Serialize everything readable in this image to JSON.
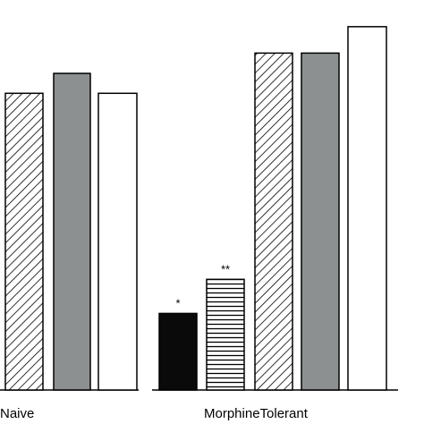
{
  "chart_data": {
    "type": "bar",
    "title": "",
    "xlabel": "",
    "ylabel": "",
    "ylim": [
      0,
      100
    ],
    "grid": false,
    "groups": [
      {
        "label": "Naive",
        "bars": [
          {
            "pattern": "diagonal-hatch",
            "value": 77.5,
            "annotation": ""
          },
          {
            "pattern": "solid-gray",
            "value": 82.7,
            "annotation": ""
          },
          {
            "pattern": "solid-white",
            "value": 77.5,
            "annotation": ""
          }
        ]
      },
      {
        "label": "MorphineTolerant",
        "bars": [
          {
            "pattern": "solid-black",
            "value": 20.0,
            "annotation": "*"
          },
          {
            "pattern": "horizontal-hatch",
            "value": 28.9,
            "annotation": "**"
          },
          {
            "pattern": "diagonal-hatch",
            "value": 88.0,
            "annotation": ""
          },
          {
            "pattern": "solid-gray",
            "value": 88.0,
            "annotation": ""
          },
          {
            "pattern": "solid-white",
            "value": 94.9,
            "annotation": ""
          }
        ]
      }
    ]
  },
  "colors": {
    "gray": "#8c9090",
    "black": "#0a0a0a",
    "stroke": "#000000",
    "background": "#ffffff"
  }
}
